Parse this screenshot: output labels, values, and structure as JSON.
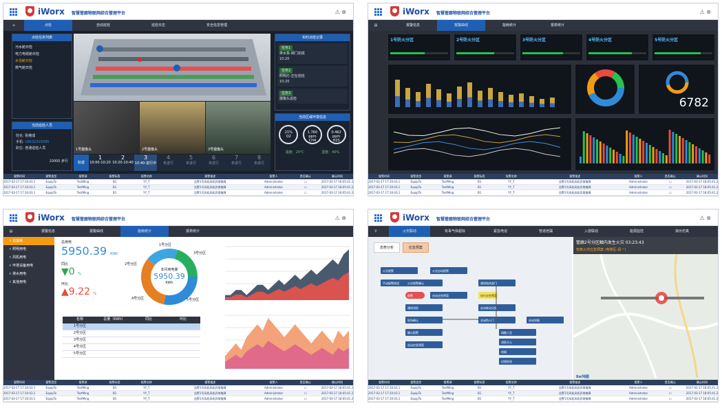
{
  "app": {
    "brand": "iWorx",
    "subtitle": "智慧管廊物联网综合管理平台"
  },
  "footer": {
    "headers": [
      "报警时间",
      "报警类型",
      "报警源",
      "报警标签",
      "报警名称",
      "报警描述",
      "报警人",
      "是否确认",
      "确认时间"
    ],
    "rows": [
      [
        "2017-03-17 17:10:43.127",
        "EquipTo",
        "TestMing",
        "B1",
        "YY_T",
        "告警1号风机风机异常故障",
        "Administrator",
        "",
        "2017-03-17 18:05:41.266"
      ],
      [
        "2017-03-17 17:10:43.127",
        "EquipTo",
        "TestMing",
        "B1",
        "YY_T",
        "告警1号风机风机异常故障",
        "Administrator",
        "",
        "2017-03-17 18:05:41.266"
      ],
      [
        "2017-03-17 17:10:43.127",
        "EquipTo",
        "TestMing",
        "B1",
        "YY_T",
        "告警1号风机风机异常故障",
        "Administrator",
        "",
        "2017-03-17 18:05:41.266"
      ]
    ]
  },
  "q1": {
    "nav": [
      "点检",
      "自动巡检",
      "巡检日志",
      "安全信息管理"
    ],
    "left_title": "点检任务列表",
    "tasks": [
      "污水舱日检",
      "电力电缆舱日检",
      "水信舱日检",
      "燃气舱日检"
    ],
    "person_title": "当前巡检人员",
    "person": {
      "name_label": "姓名:",
      "name": "张继成",
      "phone_label": "手机:",
      "phone": "18632315095",
      "role_label": "职位:",
      "role": "普通巡检人员"
    },
    "person_steps": "10000 步行",
    "right_title": "实时点检记录",
    "records": [
      {
        "tag": "任务1",
        "text": "排水泵-阀门完成",
        "time": "10:20"
      },
      {
        "tag": "任务2",
        "text": "照明灯-正在巡检",
        "time": "10:20"
      },
      {
        "tag": "任务3",
        "text": "摄像头巡检",
        "time": ""
      }
    ],
    "env_title": "当前区域环境信息",
    "gauges": [
      {
        "val": "21%",
        "unit": "",
        "name": "O2"
      },
      {
        "val": "1.760",
        "unit": "ppm",
        "name": "CH4"
      },
      {
        "val": "0.462",
        "unit": "ppm",
        "name": "H2S"
      }
    ],
    "temp": "温度：20℃",
    "hum": "湿度：40%",
    "cams": [
      "1号摄像头",
      "2号摄像头",
      "3号摄像头"
    ],
    "track_label": "轨迹",
    "steps": [
      {
        "n": "1",
        "t": "10:00-10:20"
      },
      {
        "n": "2",
        "t": "10:20-10:40"
      },
      {
        "n": "3",
        "t": "10:40-进行中"
      },
      {
        "n": "4",
        "t": "未进行"
      },
      {
        "n": "5",
        "t": "未进行"
      },
      {
        "n": "6",
        "t": "未进行"
      },
      {
        "n": "7",
        "t": "未进行"
      },
      {
        "n": "8",
        "t": "未进行"
      }
    ]
  },
  "q2": {
    "nav": [
      "报警信息",
      "报警曲线",
      "能耗统计",
      "报表统计"
    ],
    "zones": [
      "1号防火分区",
      "2号防火分区",
      "3号防火分区",
      "4号防火分区",
      "5号防火分区"
    ],
    "big": "6782",
    "zone_color": "#27c24c"
  },
  "q3": {
    "nav": [
      "报警信息",
      "报警曲线",
      "能耗统计",
      "报表统计"
    ],
    "menu": [
      "总能耗",
      "照明用电",
      "风机用电",
      "环境设备用电",
      "排水用电",
      "其他用电"
    ],
    "total_label": "总用电",
    "total": "5950.39",
    "total_unit": "KWh",
    "tb_label": "同比",
    "tb": "0",
    "tb_unit": "%",
    "hb_label": "环比",
    "hb": "9.22",
    "hb_unit": "%",
    "donut_label": "本月用电量",
    "donut_val": "5950.39",
    "donut_unit": "KWh",
    "zones": [
      "1号分区",
      "2号分区",
      "3号分区",
      "4号分区",
      "5号分区"
    ],
    "table_head": [
      "名称",
      "总量（KWh）",
      "同比",
      "环比"
    ],
    "table": [
      "1号分区",
      "2号分区",
      "3号分区",
      "4号分区",
      "5号分区"
    ],
    "chart_data": [
      {
        "type": "area",
        "title": "日用",
        "series": [
          {
            "name": "",
            "values": [
              1,
              1,
              2,
              2,
              1,
              2,
              3,
              3,
              2,
              3,
              4,
              3,
              4,
              5,
              4,
              5,
              6,
              5,
              6,
              7,
              8,
              7,
              9,
              10
            ]
          }
        ]
      },
      {
        "type": "area",
        "title": "日用",
        "series": [
          {
            "name": "",
            "values": [
              2,
              3,
              4,
              3,
              5,
              6,
              7,
              6,
              8,
              7,
              6,
              5,
              6,
              7,
              6,
              5,
              4,
              5,
              6,
              5,
              4,
              6,
              5,
              6
            ]
          }
        ]
      }
    ]
  },
  "q4": {
    "nav": [
      "火灾联动",
      "有毒气体超标",
      "紧急电话",
      "管道泄漏",
      "入侵联动",
      "能源监控",
      "演示仿真"
    ],
    "tabs": [
      "态势分析",
      "应急预案"
    ],
    "map_title": "管廊2号分区触内发生火灾 03:23:43",
    "map_sub": "管廊火灾应急预案 (电梯区-段一)",
    "flow": [
      "火灾报警",
      "火灾自动报警",
      "手动报警按钮",
      "火灾报警确认",
      "报警",
      "启动应急预案",
      "通知消防",
      "现场确认",
      "确认报警",
      "启动应急预案",
      "通知相关部门",
      "执行应急预案",
      "启动联动设备",
      "关闭防火门",
      "启动排烟",
      "疏散人员",
      "消防灭火",
      "排烟",
      "封锁现场"
    ],
    "brand_bottom": "Bai地图"
  }
}
